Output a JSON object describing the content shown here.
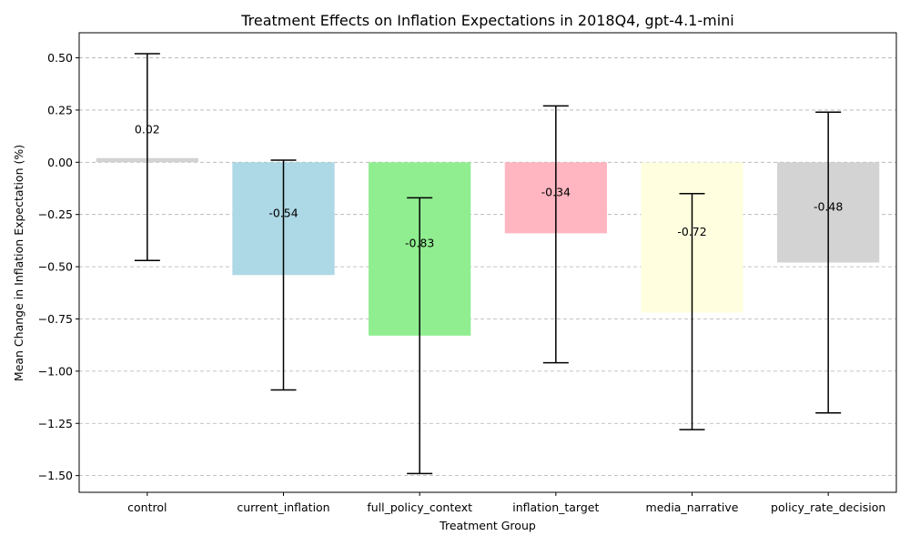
{
  "chart_data": {
    "type": "bar",
    "title": "Treatment Effects on Inflation Expectations in 2018Q4, gpt-4.1-mini",
    "xlabel": "Treatment Group",
    "ylabel": "Mean Change in Inflation Expectation (%)",
    "categories": [
      "control",
      "current_inflation",
      "full_policy_context",
      "inflation_target",
      "media_narrative",
      "policy_rate_decision"
    ],
    "values": [
      0.02,
      -0.54,
      -0.83,
      -0.34,
      -0.72,
      -0.48
    ],
    "value_labels": [
      "0.02",
      "-0.54",
      "-0.83",
      "-0.34",
      "-0.72",
      "-0.48"
    ],
    "error_low": [
      -0.47,
      -1.09,
      -1.49,
      -0.96,
      -1.28,
      -1.2
    ],
    "error_high": [
      0.52,
      0.01,
      -0.17,
      0.27,
      -0.15,
      0.24
    ],
    "colors": [
      "#d3d3d3",
      "#add8e6",
      "#90ee90",
      "#ffb6c1",
      "#ffffe0",
      "#d3d3d3"
    ],
    "ylim": [
      -1.58,
      0.62
    ],
    "yticks": [
      0.5,
      0.25,
      0.0,
      -0.25,
      -0.5,
      -0.75,
      -1.0,
      -1.25,
      -1.5
    ],
    "ytick_labels": [
      "0.50",
      "0.25",
      "0.00",
      "−0.25",
      "−0.50",
      "−0.75",
      "−1.00",
      "−1.25",
      "−1.50"
    ],
    "grid": "y",
    "legend": "none"
  }
}
